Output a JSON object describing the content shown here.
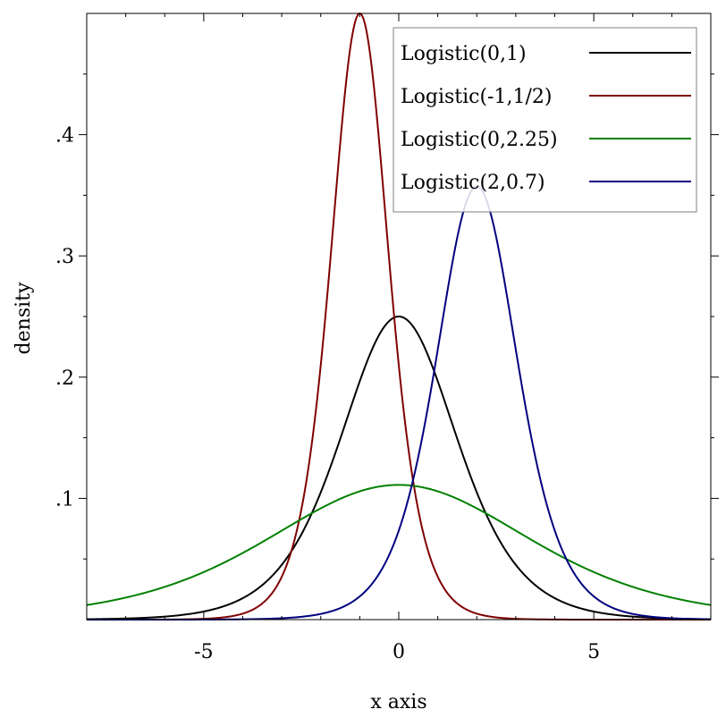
{
  "chart_data": {
    "type": "line",
    "title": "",
    "xlabel": "x axis",
    "ylabel": "density",
    "xlim": [
      -8,
      8
    ],
    "ylim": [
      0,
      0.5
    ],
    "x_ticks": [
      {
        "value": -5,
        "label": "-5"
      },
      {
        "value": 0,
        "label": "0"
      },
      {
        "value": 5,
        "label": "5"
      }
    ],
    "y_ticks": [
      {
        "value": 0.1,
        "label": ".1"
      },
      {
        "value": 0.2,
        "label": ".2"
      },
      {
        "value": 0.3,
        "label": ".3"
      },
      {
        "value": 0.4,
        "label": ".4"
      }
    ],
    "legend_position": "top-right",
    "grid": false,
    "series": [
      {
        "name": "Logistic(0,1)",
        "mean": 0,
        "scale": 1,
        "color": "#000000"
      },
      {
        "name": "Logistic(-1,1/2)",
        "mean": -1,
        "scale": 0.5,
        "color": "#800000"
      },
      {
        "name": "Logistic(0,2.25)",
        "mean": 0,
        "scale": 2.25,
        "color": "#008000"
      },
      {
        "name": "Logistic(2,0.7)",
        "mean": 2,
        "scale": 0.7,
        "color": "#000080"
      }
    ]
  }
}
